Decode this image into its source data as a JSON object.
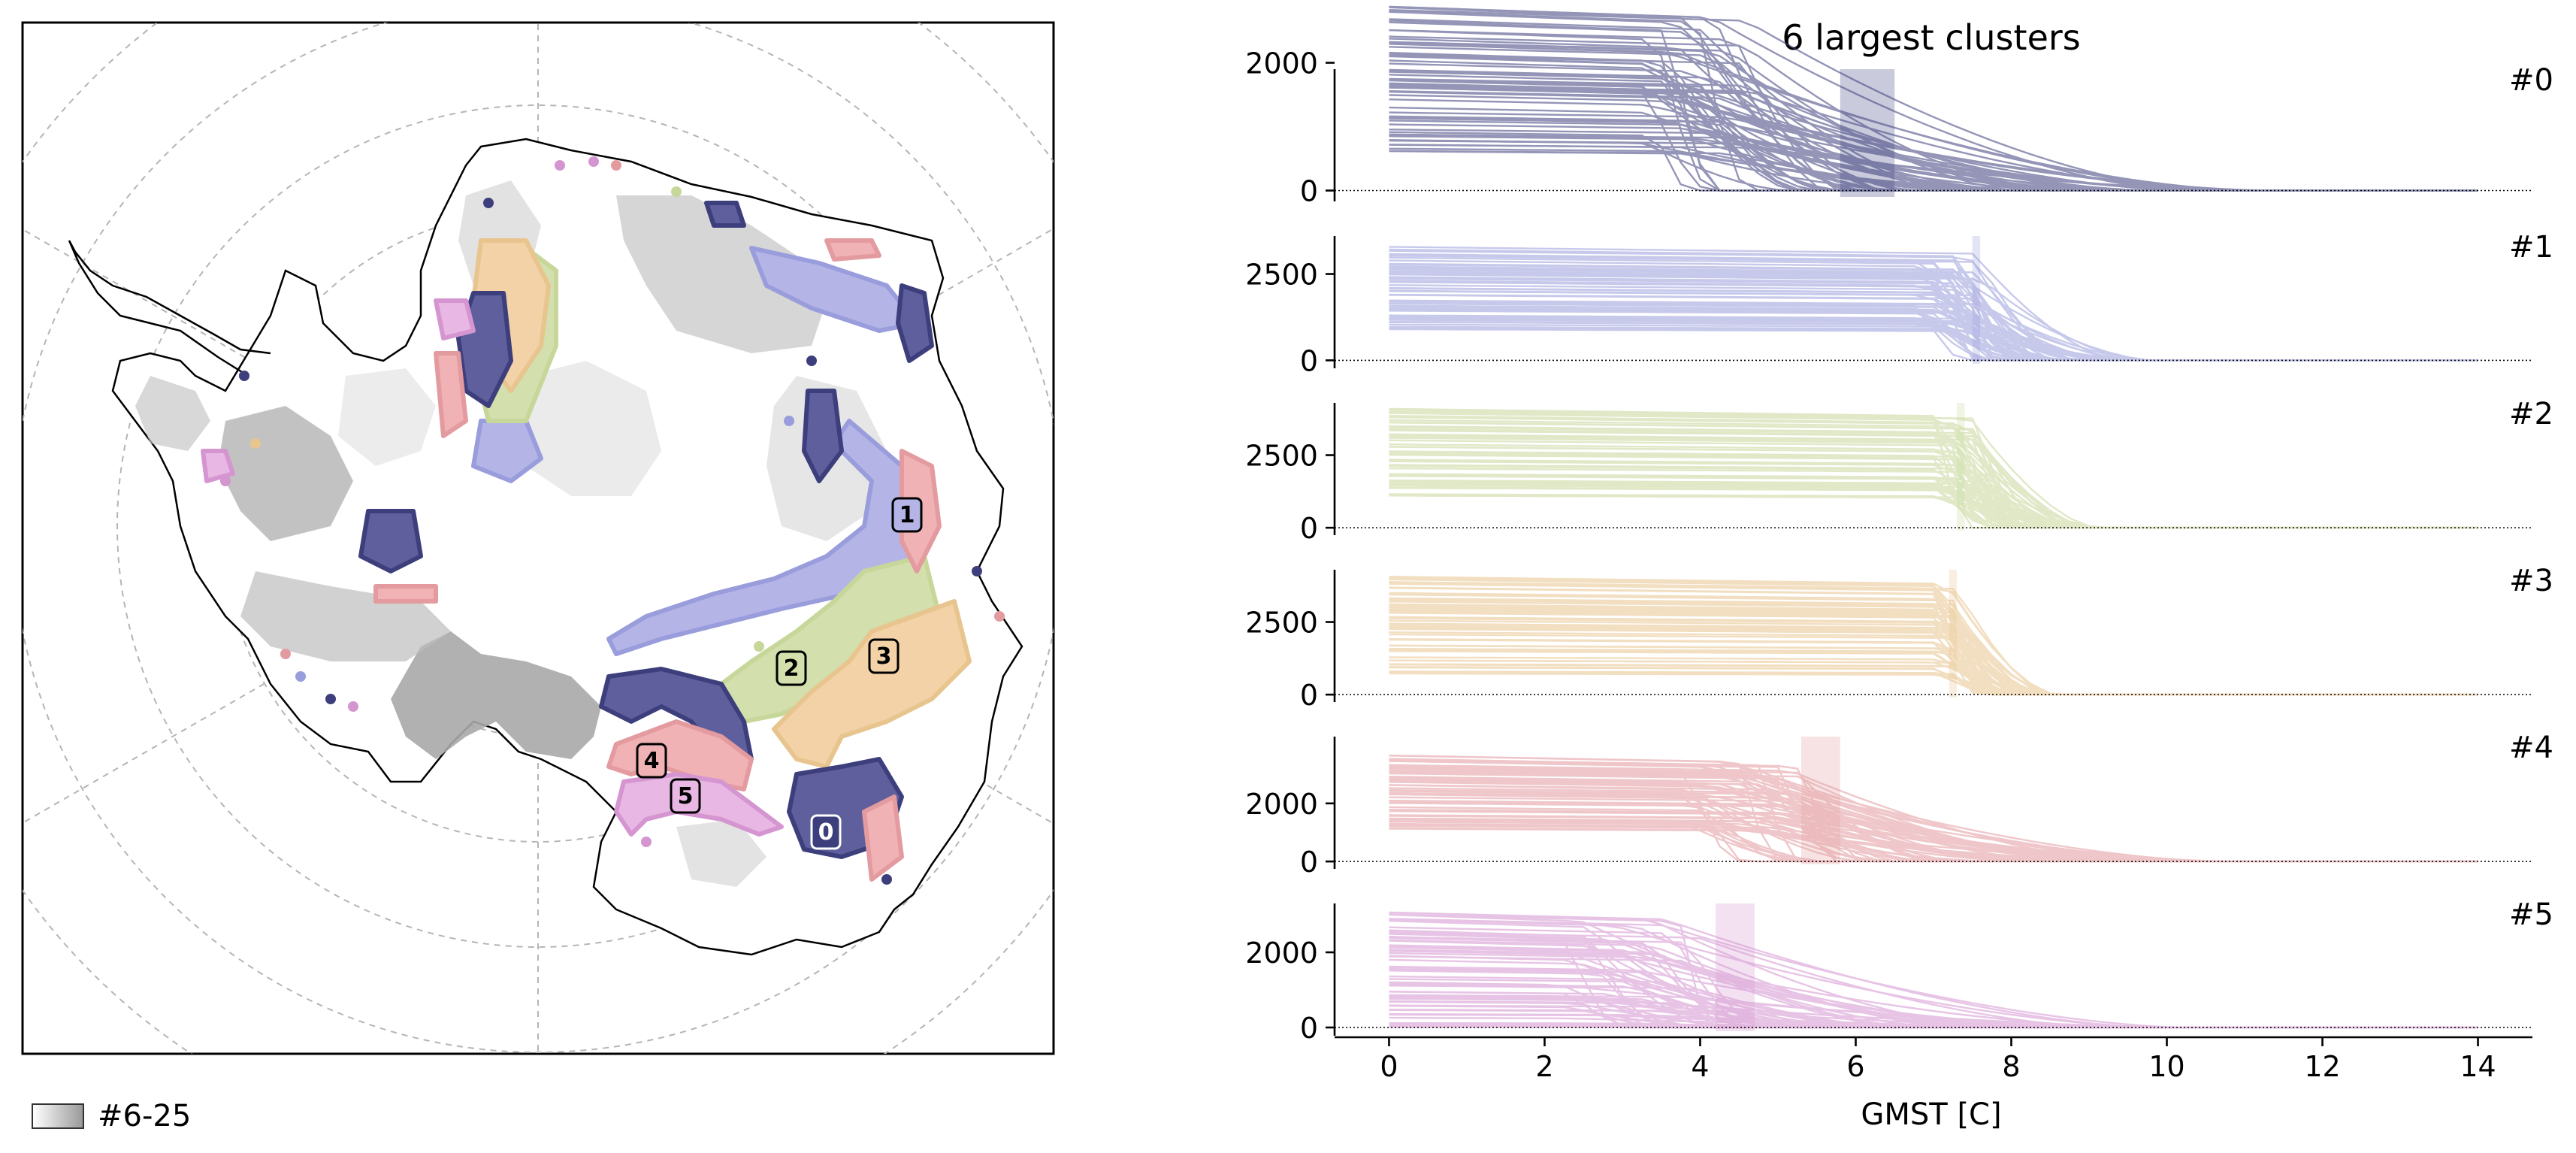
{
  "map": {
    "legend_label": "#6-25",
    "cluster_labels": [
      "0",
      "1",
      "2",
      "3",
      "4",
      "5"
    ]
  },
  "chart_data": {
    "type": "line",
    "title": "6 largest clusters",
    "xlabel": "GMST [C]",
    "xlim": [
      -0.7,
      14.7
    ],
    "x_ticks": [
      0,
      2,
      4,
      6,
      8,
      10,
      12,
      14
    ],
    "panels": [
      {
        "name": "#0",
        "color": "#3d3f7d",
        "ylim": [
          -100,
          1900
        ],
        "yticks": [
          0,
          2000
        ],
        "band": [
          5.8,
          6.5
        ],
        "curve": {
          "low": 600,
          "high": 2900,
          "drop_start": 3.2,
          "drop_end": 11.0,
          "spread": 2.5
        }
      },
      {
        "name": "#1",
        "color": "#9a9ddc",
        "ylim": [
          -100,
          3600
        ],
        "yticks": [
          0,
          2500
        ],
        "band": [
          7.5,
          7.6
        ],
        "curve": {
          "low": 900,
          "high": 3300,
          "drop_start": 6.8,
          "drop_end": 9.5,
          "spread": 1.4
        }
      },
      {
        "name": "#2",
        "color": "#c7d79a",
        "ylim": [
          -100,
          4300
        ],
        "yticks": [
          0,
          2500
        ],
        "band": [
          7.3,
          7.4
        ],
        "curve": {
          "low": 1100,
          "high": 4100,
          "drop_start": 7.0,
          "drop_end": 8.8,
          "spread": 1.0
        }
      },
      {
        "name": "#3",
        "color": "#e8c48e",
        "ylim": [
          -100,
          4300
        ],
        "yticks": [
          0,
          2500
        ],
        "band": [
          7.2,
          7.3
        ],
        "curve": {
          "low": 700,
          "high": 4100,
          "drop_start": 7.0,
          "drop_end": 8.2,
          "spread": 0.6
        }
      },
      {
        "name": "#4",
        "color": "#e39b9f",
        "ylim": [
          -100,
          4300
        ],
        "yticks": [
          0,
          2000
        ],
        "band": [
          5.3,
          5.8
        ],
        "curve": {
          "low": 1100,
          "high": 3700,
          "drop_start": 3.8,
          "drop_end": 10.5,
          "spread": 2.5
        }
      },
      {
        "name": "#5",
        "color": "#d595d0",
        "ylim": [
          -100,
          3300
        ],
        "yticks": [
          0,
          2000
        ],
        "band": [
          4.2,
          4.7
        ],
        "curve": {
          "low": 0,
          "high": 3100,
          "drop_start": 2.2,
          "drop_end": 10.0,
          "spread": 3.0
        }
      }
    ]
  }
}
